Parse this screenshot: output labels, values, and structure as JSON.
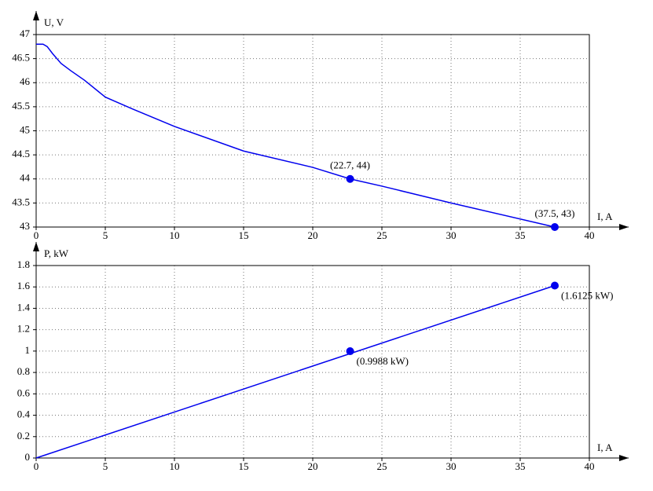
{
  "chart_data": [
    {
      "type": "line",
      "y_label": "U, V",
      "x_label": "I, A",
      "color": "#0000ee",
      "x": [
        0,
        0.5,
        0.8,
        1.2,
        1.8,
        2.5,
        3.5,
        5,
        7,
        10,
        15,
        20,
        22.7,
        25,
        30,
        37.5
      ],
      "values": [
        46.8,
        46.8,
        46.75,
        46.6,
        46.4,
        46.25,
        46.05,
        45.7,
        45.45,
        45.09,
        44.58,
        44.24,
        44,
        43.85,
        43.5,
        43
      ],
      "markers": {
        "x": [
          22.7,
          37.5
        ],
        "values": [
          44,
          43
        ],
        "labels": [
          "(22.7, 44)",
          "(37.5, 43)"
        ]
      },
      "xlim": [
        0,
        40
      ],
      "xticks": [
        0,
        5,
        10,
        15,
        20,
        25,
        30,
        35,
        40
      ],
      "ylim": [
        43,
        47
      ],
      "yticks": [
        43,
        43.5,
        44,
        44.5,
        45,
        45.5,
        46,
        46.5,
        47
      ],
      "grid": true
    },
    {
      "type": "line",
      "y_label": "P, kW",
      "x_label": "I, A",
      "color": "#0000ee",
      "x": [
        0,
        37.5
      ],
      "values": [
        0,
        1.6125
      ],
      "markers": {
        "x": [
          22.7,
          37.5
        ],
        "values": [
          0.9988,
          1.6125
        ],
        "labels": [
          "(0.9988 kW)",
          "(1.6125 kW)"
        ]
      },
      "xlim": [
        0,
        40
      ],
      "xticks": [
        0,
        5,
        10,
        15,
        20,
        25,
        30,
        35,
        40
      ],
      "ylim": [
        0,
        1.8
      ],
      "yticks": [
        0,
        0.2,
        0.4,
        0.6,
        0.8,
        1,
        1.2,
        1.4,
        1.6,
        1.8
      ],
      "grid": true
    }
  ]
}
